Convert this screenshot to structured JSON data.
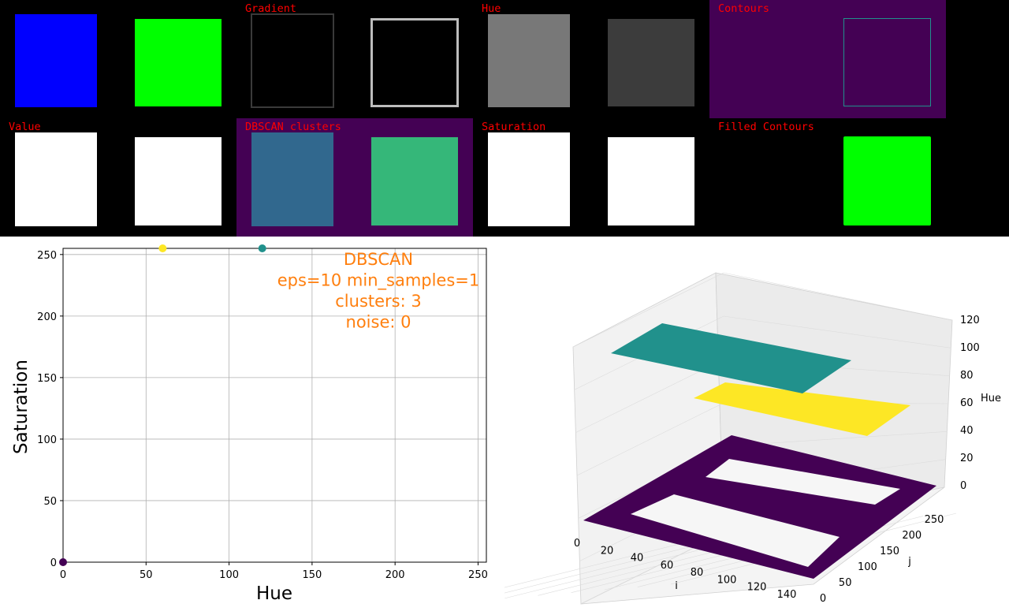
{
  "panels": {
    "gradient_label": "Gradient",
    "hue_label": "Hue",
    "contours_label": "Contours",
    "value_label": "Value",
    "dbscan_clusters_label": "DBSCAN clusters",
    "saturation_label": "Saturation",
    "filled_contours_label": "Filled Contours"
  },
  "colors": {
    "blue": "#0000ff",
    "green": "#00ff00",
    "purple_bg": "#440154",
    "teal": "#21918c",
    "yellow": "#fde725",
    "dbscan_blue": "#31688e",
    "dbscan_green": "#35b779",
    "annotation": "#ff7f0e",
    "hue_gray_light": "#787878",
    "hue_gray_dark": "#3c3c3c"
  },
  "chart_data": [
    {
      "type": "scatter",
      "xlabel": "Hue",
      "ylabel": "Saturation",
      "xlim": [
        0,
        255
      ],
      "ylim": [
        0,
        255
      ],
      "xticks": [
        "0",
        "50",
        "100",
        "150",
        "200",
        "250"
      ],
      "yticks": [
        "0",
        "50",
        "100",
        "150",
        "200",
        "250"
      ],
      "grid": true,
      "points": [
        {
          "x": 0,
          "y": 0,
          "color": "#440154"
        },
        {
          "x": 60,
          "y": 255,
          "color": "#fde725"
        },
        {
          "x": 120,
          "y": 255,
          "color": "#21918c"
        }
      ],
      "annotation": [
        "DBSCAN",
        "eps=10 min_samples=1",
        "clusters: 3",
        "noise: 0"
      ]
    },
    {
      "type": "scatter3d",
      "xlabel": "i",
      "ylabel": "j",
      "zlabel": "Hue",
      "xticks": [
        "0",
        "20",
        "40",
        "60",
        "80",
        "100",
        "120",
        "140"
      ],
      "yticks": [
        "0",
        "50",
        "100",
        "150",
        "200",
        "250"
      ],
      "zticks": [
        "0",
        "20",
        "40",
        "60",
        "80",
        "100",
        "120"
      ],
      "series": [
        {
          "hue": 0,
          "color": "#440154"
        },
        {
          "hue": 60,
          "color": "#fde725"
        },
        {
          "hue": 120,
          "color": "#21918c"
        }
      ]
    }
  ]
}
